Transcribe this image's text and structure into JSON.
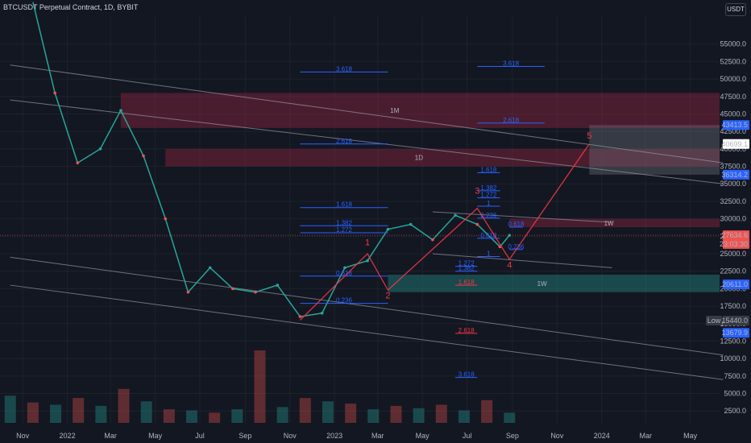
{
  "header": {
    "title": "BTCUSDT Perpetual Contract, 1D, BYBIT",
    "unit_button": "USDT"
  },
  "colors": {
    "bg": "#131722",
    "up": "#26a69a",
    "down": "#ef5350",
    "fib": "#2962ff",
    "wave": "#f23645",
    "channel": "#9598a1"
  },
  "chart_data": {
    "type": "candlestick",
    "title": "BTCUSDT Perpetual Contract, 1D, BYBIT",
    "ylim": [
      0,
      60000
    ],
    "price_ticks": [
      "55000.0",
      "52500.0",
      "50000.0",
      "47500.0",
      "45000.0",
      "42500.0",
      "40000.0",
      "37500.0",
      "35000.0",
      "32500.0",
      "30000.0",
      "27500.0",
      "25000.0",
      "22500.0",
      "20000.0",
      "17500.0",
      "15000.0",
      "12500.0",
      "10000.0",
      "7500.0",
      "5000.0",
      "2500.0"
    ],
    "time_ticks": [
      "Nov",
      "2022",
      "Mar",
      "May",
      "Jul",
      "Sep",
      "Nov",
      "2023",
      "Mar",
      "May",
      "Jul",
      "Sep",
      "Nov",
      "2024",
      "Mar",
      "May"
    ],
    "price_series": [
      [
        "2021-11",
        61000
      ],
      [
        "2021-12",
        48000
      ],
      [
        "2022-01",
        38000
      ],
      [
        "2022-02",
        40000
      ],
      [
        "2022-03",
        45500
      ],
      [
        "2022-04",
        39000
      ],
      [
        "2022-05",
        30000
      ],
      [
        "2022-06",
        19500
      ],
      [
        "2022-07",
        23000
      ],
      [
        "2022-08",
        20000
      ],
      [
        "2022-09",
        19500
      ],
      [
        "2022-10",
        20500
      ],
      [
        "2022-11",
        16000
      ],
      [
        "2022-12",
        16500
      ],
      [
        "2023-01",
        23000
      ],
      [
        "2023-02",
        24000
      ],
      [
        "2023-03",
        28500
      ],
      [
        "2023-04",
        29200
      ],
      [
        "2023-05",
        27000
      ],
      [
        "2023-06",
        30500
      ],
      [
        "2023-07",
        29200
      ],
      [
        "2023-08",
        26000
      ],
      [
        "2023-08-28",
        27634.6
      ]
    ],
    "price_labels": [
      {
        "text": "43413.5",
        "price": 43413.5,
        "color": "#2962ff"
      },
      {
        "text": "40699.1",
        "price": 40699.1,
        "color": "#ffffff"
      },
      {
        "text": "36314.2",
        "price": 36314.2,
        "color": "#2962ff"
      },
      {
        "text": "27634.6",
        "price": 27634.6,
        "color": "#ef5350"
      },
      {
        "text": "23:03:30",
        "price": 26400,
        "color": "#ef5350"
      },
      {
        "text": "20611.0",
        "price": 20611.0,
        "color": "#2962ff"
      },
      {
        "text": "15440.0",
        "price": 15440.0,
        "color": "#363a45",
        "prefix": "Low"
      },
      {
        "text": "13679.9",
        "price": 13679.9,
        "color": "#2962ff"
      }
    ],
    "fib_levels": [
      {
        "label": "3.618",
        "price": 51000,
        "t0": "2022-11",
        "t1": "2023-03"
      },
      {
        "label": "3.618",
        "price": 51800,
        "t0": "2023-07",
        "t1": "2023-10"
      },
      {
        "label": "2.618",
        "price": 43700,
        "t0": "2023-07",
        "t1": "2023-10"
      },
      {
        "label": "2.618",
        "price": 40700,
        "t0": "2022-11",
        "t1": "2023-03"
      },
      {
        "label": "1.618",
        "price": 36600,
        "t0": "2023-07",
        "t1": "2023-08-15"
      },
      {
        "label": "1.382",
        "price": 34000,
        "t0": "2023-07",
        "t1": "2023-08-15"
      },
      {
        "label": "1.272",
        "price": 33000,
        "t0": "2023-07",
        "t1": "2023-08-15"
      },
      {
        "label": "1.618",
        "price": 31600,
        "t0": "2022-11",
        "t1": "2023-03"
      },
      {
        "label": "1",
        "price": 31800,
        "t0": "2023-07",
        "t1": "2023-08-15"
      },
      {
        "label": "0.236",
        "price": 30100,
        "t0": "2023-07",
        "t1": "2023-08-15"
      },
      {
        "label": "1.382",
        "price": 29000,
        "t0": "2022-11",
        "t1": "2023-03"
      },
      {
        "label": "1.272",
        "price": 28000,
        "t0": "2022-11",
        "t1": "2023-03"
      },
      {
        "label": "0.618",
        "price": 28800,
        "t0": "2023-08-28",
        "t1": "2023-09"
      },
      {
        "label": "0.618",
        "price": 27200,
        "t0": "2023-07",
        "t1": "2023-08-15"
      },
      {
        "label": "0.236",
        "price": 25600,
        "t0": "2023-08-28",
        "t1": "2023-09"
      },
      {
        "label": "1",
        "price": 24600,
        "t0": "2023-07",
        "t1": "2023-08-15"
      },
      {
        "label": "1.272",
        "price": 23200,
        "t0": "2023-06",
        "t1": "2023-07"
      },
      {
        "label": "1.382",
        "price": 22500,
        "t0": "2023-06",
        "t1": "2023-07"
      },
      {
        "label": "0.618",
        "price": 21800,
        "t0": "2022-11",
        "t1": "2023-03"
      },
      {
        "label": "1.618",
        "price": 20500,
        "t0": "2023-06",
        "t1": "2023-07"
      },
      {
        "label": "0.236",
        "price": 17900,
        "t0": "2022-11",
        "t1": "2023-03"
      },
      {
        "label": "2.618",
        "price": 13600,
        "t0": "2023-06",
        "t1": "2023-07"
      },
      {
        "label": "3.618",
        "price": 7300,
        "t0": "2023-06",
        "t1": "2023-07"
      }
    ],
    "zones": [
      {
        "label": "1M",
        "p0": 43000,
        "p1": 48000,
        "t0": "2022-03",
        "t1": "2024-06",
        "color": "rgba(178,40,70,0.35)"
      },
      {
        "label": "1D",
        "p0": 37500,
        "p1": 40000,
        "t0": "2022-05",
        "t1": "2024-06",
        "color": "rgba(178,40,70,0.35)"
      },
      {
        "label": "1W",
        "p0": 28800,
        "p1": 30000,
        "t0": "2023-08-28",
        "t1": "2024-06",
        "color": "rgba(178,40,70,0.35)"
      },
      {
        "label": "1W",
        "p0": 19500,
        "p1": 22000,
        "t0": "2023-03",
        "t1": "2024-06",
        "color": "rgba(38,166,154,0.35)"
      },
      {
        "label": "",
        "p0": 36314.2,
        "p1": 43413.5,
        "t0": "2023-12",
        "t1": "2024-06",
        "color": "rgba(120,123,134,0.35)"
      }
    ],
    "waves": [
      {
        "label": "1",
        "price": 26200,
        "t": "2023-02"
      },
      {
        "label": "2",
        "price": 18600,
        "t": "2023-03"
      },
      {
        "label": "3",
        "price": 33600,
        "t": "2023-07"
      },
      {
        "label": "4",
        "price": 23000,
        "t": "2023-08-28"
      },
      {
        "label": "5",
        "price": 41500,
        "t": "2023-12"
      }
    ],
    "wave_path": [
      [
        "2022-11",
        15500
      ],
      [
        "2023-02",
        25000
      ],
      [
        "2023-03",
        19800
      ],
      [
        "2023-07",
        31500
      ],
      [
        "2023-08-28",
        24200
      ],
      [
        "2023-12",
        40700
      ]
    ],
    "channels": [
      [
        [
          "2021-10",
          52000
        ],
        [
          "2024-06",
          38000
        ]
      ],
      [
        [
          "2021-10",
          47000
        ],
        [
          "2024-06",
          35000
        ]
      ],
      [
        [
          "2021-10",
          24500
        ],
        [
          "2024-06",
          10500
        ]
      ],
      [
        [
          "2021-10",
          20500
        ],
        [
          "2024-06",
          7000
        ]
      ],
      [
        [
          "2023-05",
          31000
        ],
        [
          "2024-01",
          29500
        ]
      ],
      [
        [
          "2023-05",
          25000
        ],
        [
          "2024-01",
          23000
        ]
      ]
    ],
    "volume": [
      120,
      90,
      80,
      110,
      75,
      150,
      95,
      60,
      55,
      45,
      60,
      320,
      70,
      110,
      95,
      85,
      60,
      75,
      65,
      80,
      55,
      100,
      45
    ]
  }
}
